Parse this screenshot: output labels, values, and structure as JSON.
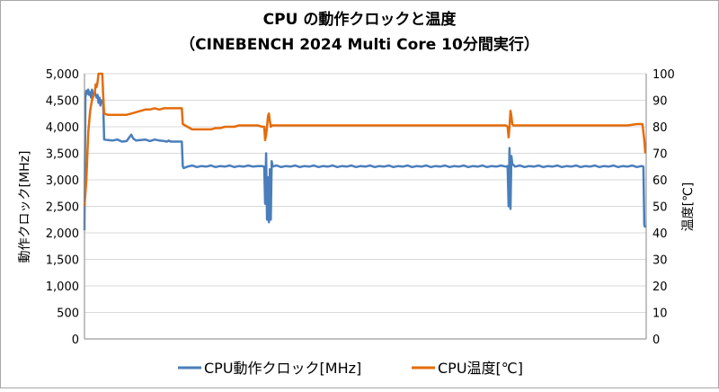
{
  "chart_data": {
    "type": "line",
    "title": "CPU の動作クロックと温度",
    "subtitle": "（CINEBENCH 2024 Multi Core 10分間実行）",
    "ylabel_left": "動作クロック[MHz]",
    "ylabel_right": "温度[℃]",
    "ylim_left": [
      0,
      5000
    ],
    "ylim_right": [
      0,
      100
    ],
    "left_ticks": [
      "0",
      "500",
      "1,000",
      "1,500",
      "2,000",
      "2,500",
      "3,000",
      "3,500",
      "4,000",
      "4,500",
      "5,000"
    ],
    "right_ticks": [
      "0",
      "10",
      "20",
      "30",
      "40",
      "50",
      "60",
      "70",
      "80",
      "90",
      "100"
    ],
    "grid": true,
    "x_range_seconds": [
      0,
      600
    ],
    "legend_position": "bottom",
    "series": [
      {
        "name": "CPU動作クロック[MHz]",
        "axis": "left",
        "color": "#4a7ebb",
        "points": [
          [
            0,
            2050
          ],
          [
            1,
            4550
          ],
          [
            2,
            4680
          ],
          [
            3,
            4620
          ],
          [
            4,
            4700
          ],
          [
            5,
            4600
          ],
          [
            6,
            4650
          ],
          [
            7,
            4550
          ],
          [
            8,
            4700
          ],
          [
            9,
            4600
          ],
          [
            11,
            4650
          ],
          [
            13,
            4550
          ],
          [
            14,
            4600
          ],
          [
            15,
            4450
          ],
          [
            16,
            4550
          ],
          [
            17,
            4400
          ],
          [
            18,
            4500
          ],
          [
            19,
            4450
          ],
          [
            20,
            4450
          ],
          [
            21,
            3760
          ],
          [
            25,
            3750
          ],
          [
            30,
            3740
          ],
          [
            35,
            3760
          ],
          [
            40,
            3720
          ],
          [
            45,
            3730
          ],
          [
            50,
            3850
          ],
          [
            52,
            3780
          ],
          [
            55,
            3740
          ],
          [
            60,
            3750
          ],
          [
            65,
            3760
          ],
          [
            70,
            3730
          ],
          [
            75,
            3760
          ],
          [
            80,
            3740
          ],
          [
            85,
            3730
          ],
          [
            88,
            3720
          ],
          [
            90,
            3740
          ],
          [
            92,
            3720
          ],
          [
            95,
            3720
          ],
          [
            100,
            3720
          ],
          [
            104,
            3720
          ],
          [
            105,
            3250
          ],
          [
            106,
            3220
          ],
          [
            110,
            3250
          ],
          [
            115,
            3270
          ],
          [
            120,
            3240
          ],
          [
            125,
            3260
          ],
          [
            130,
            3250
          ],
          [
            135,
            3270
          ],
          [
            140,
            3240
          ],
          [
            145,
            3260
          ],
          [
            150,
            3250
          ],
          [
            155,
            3270
          ],
          [
            160,
            3240
          ],
          [
            165,
            3260
          ],
          [
            170,
            3250
          ],
          [
            175,
            3270
          ],
          [
            180,
            3250
          ],
          [
            185,
            3260
          ],
          [
            190,
            3260
          ],
          [
            192,
            3250
          ],
          [
            193,
            2550
          ],
          [
            194,
            3500
          ],
          [
            195,
            2250
          ],
          [
            196,
            3050
          ],
          [
            197,
            2200
          ],
          [
            198,
            3200
          ],
          [
            199,
            2250
          ],
          [
            200,
            3350
          ],
          [
            201,
            3250
          ],
          [
            205,
            3270
          ],
          [
            210,
            3240
          ],
          [
            215,
            3260
          ],
          [
            220,
            3250
          ],
          [
            225,
            3270
          ],
          [
            230,
            3240
          ],
          [
            235,
            3260
          ],
          [
            240,
            3250
          ],
          [
            245,
            3270
          ],
          [
            250,
            3240
          ],
          [
            255,
            3260
          ],
          [
            260,
            3250
          ],
          [
            265,
            3270
          ],
          [
            270,
            3240
          ],
          [
            275,
            3260
          ],
          [
            280,
            3250
          ],
          [
            285,
            3270
          ],
          [
            290,
            3240
          ],
          [
            295,
            3260
          ],
          [
            300,
            3250
          ],
          [
            305,
            3270
          ],
          [
            310,
            3240
          ],
          [
            315,
            3260
          ],
          [
            320,
            3250
          ],
          [
            325,
            3270
          ],
          [
            330,
            3240
          ],
          [
            335,
            3260
          ],
          [
            340,
            3250
          ],
          [
            345,
            3270
          ],
          [
            350,
            3240
          ],
          [
            355,
            3260
          ],
          [
            360,
            3250
          ],
          [
            365,
            3270
          ],
          [
            370,
            3240
          ],
          [
            375,
            3260
          ],
          [
            380,
            3250
          ],
          [
            385,
            3270
          ],
          [
            390,
            3240
          ],
          [
            395,
            3260
          ],
          [
            400,
            3250
          ],
          [
            405,
            3270
          ],
          [
            410,
            3240
          ],
          [
            415,
            3260
          ],
          [
            420,
            3250
          ],
          [
            425,
            3270
          ],
          [
            430,
            3240
          ],
          [
            435,
            3260
          ],
          [
            440,
            3250
          ],
          [
            445,
            3270
          ],
          [
            450,
            3250
          ],
          [
            452,
            3260
          ],
          [
            453,
            2500
          ],
          [
            454,
            3600
          ],
          [
            455,
            2450
          ],
          [
            456,
            3450
          ],
          [
            457,
            3300
          ],
          [
            460,
            3250
          ],
          [
            465,
            3270
          ],
          [
            470,
            3240
          ],
          [
            475,
            3260
          ],
          [
            480,
            3250
          ],
          [
            485,
            3270
          ],
          [
            490,
            3240
          ],
          [
            495,
            3260
          ],
          [
            500,
            3250
          ],
          [
            505,
            3270
          ],
          [
            510,
            3240
          ],
          [
            515,
            3260
          ],
          [
            520,
            3250
          ],
          [
            525,
            3270
          ],
          [
            530,
            3240
          ],
          [
            535,
            3260
          ],
          [
            540,
            3250
          ],
          [
            545,
            3270
          ],
          [
            550,
            3240
          ],
          [
            555,
            3260
          ],
          [
            560,
            3250
          ],
          [
            565,
            3270
          ],
          [
            570,
            3240
          ],
          [
            575,
            3260
          ],
          [
            580,
            3250
          ],
          [
            585,
            3270
          ],
          [
            590,
            3240
          ],
          [
            595,
            3260
          ],
          [
            597,
            3250
          ],
          [
            598,
            2150
          ],
          [
            599,
            2100
          ]
        ]
      },
      {
        "name": "CPU温度[℃]",
        "axis": "right",
        "color": "#e46c0a",
        "points": [
          [
            0,
            50
          ],
          [
            2,
            60
          ],
          [
            4,
            78
          ],
          [
            6,
            86
          ],
          [
            8,
            90
          ],
          [
            10,
            92
          ],
          [
            11,
            93
          ],
          [
            12,
            96
          ],
          [
            13,
            95
          ],
          [
            14,
            97
          ],
          [
            15,
            100
          ],
          [
            17,
            100
          ],
          [
            19,
            100
          ],
          [
            20,
            92
          ],
          [
            21,
            85
          ],
          [
            25,
            84.5
          ],
          [
            30,
            84.5
          ],
          [
            35,
            84.5
          ],
          [
            40,
            84.5
          ],
          [
            45,
            84.5
          ],
          [
            50,
            85
          ],
          [
            55,
            85.5
          ],
          [
            60,
            86
          ],
          [
            65,
            86.5
          ],
          [
            70,
            86.5
          ],
          [
            75,
            87
          ],
          [
            80,
            86.5
          ],
          [
            85,
            87
          ],
          [
            90,
            87
          ],
          [
            95,
            87
          ],
          [
            100,
            87
          ],
          [
            104,
            87
          ],
          [
            105,
            81
          ],
          [
            110,
            80
          ],
          [
            115,
            79
          ],
          [
            120,
            79
          ],
          [
            125,
            79
          ],
          [
            130,
            79
          ],
          [
            135,
            79
          ],
          [
            140,
            79.5
          ],
          [
            145,
            79.5
          ],
          [
            150,
            80
          ],
          [
            155,
            80
          ],
          [
            160,
            80
          ],
          [
            165,
            80.5
          ],
          [
            170,
            80.5
          ],
          [
            175,
            80.5
          ],
          [
            180,
            80.5
          ],
          [
            185,
            80.5
          ],
          [
            190,
            80
          ],
          [
            192,
            80
          ],
          [
            193,
            75
          ],
          [
            194,
            77
          ],
          [
            195,
            80
          ],
          [
            196,
            84
          ],
          [
            197,
            85
          ],
          [
            198,
            82
          ],
          [
            199,
            80
          ],
          [
            200,
            80.5
          ],
          [
            205,
            80.5
          ],
          [
            210,
            80.5
          ],
          [
            215,
            80.5
          ],
          [
            220,
            80.5
          ],
          [
            230,
            80.5
          ],
          [
            240,
            80.5
          ],
          [
            250,
            80.5
          ],
          [
            260,
            80.5
          ],
          [
            270,
            80.5
          ],
          [
            280,
            80.5
          ],
          [
            290,
            80.5
          ],
          [
            300,
            80.5
          ],
          [
            310,
            80.5
          ],
          [
            320,
            80.5
          ],
          [
            330,
            80.5
          ],
          [
            340,
            80.5
          ],
          [
            350,
            80.5
          ],
          [
            360,
            80.5
          ],
          [
            370,
            80.5
          ],
          [
            380,
            80.5
          ],
          [
            390,
            80.5
          ],
          [
            400,
            80.5
          ],
          [
            410,
            80.5
          ],
          [
            420,
            80.5
          ],
          [
            430,
            80.5
          ],
          [
            440,
            80.5
          ],
          [
            450,
            80.5
          ],
          [
            452,
            80
          ],
          [
            453,
            76
          ],
          [
            454,
            80
          ],
          [
            455,
            86
          ],
          [
            456,
            84
          ],
          [
            457,
            81
          ],
          [
            458,
            80.5
          ],
          [
            460,
            80.5
          ],
          [
            470,
            80.5
          ],
          [
            480,
            80.5
          ],
          [
            490,
            80.5
          ],
          [
            500,
            80.5
          ],
          [
            510,
            80.5
          ],
          [
            520,
            80.5
          ],
          [
            530,
            80.5
          ],
          [
            540,
            80.5
          ],
          [
            550,
            80.5
          ],
          [
            560,
            80.5
          ],
          [
            570,
            80.5
          ],
          [
            580,
            80.5
          ],
          [
            590,
            81
          ],
          [
            596,
            81
          ],
          [
            598,
            75
          ],
          [
            599,
            70
          ]
        ]
      }
    ]
  }
}
